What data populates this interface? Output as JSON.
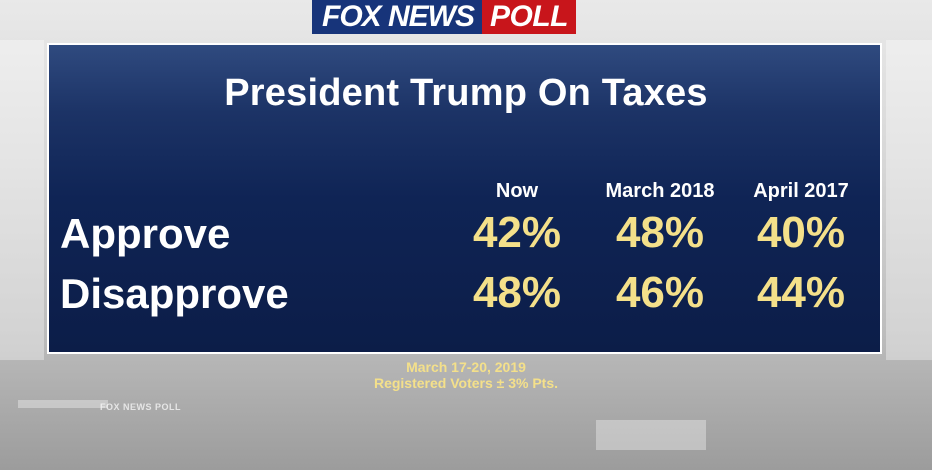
{
  "branding": {
    "logo_left": "FOX NEWS",
    "logo_right": "POLL",
    "watermark": "FOX NEWS POLL",
    "colors": {
      "navy": "#17347a",
      "red": "#c8151b",
      "panel": "#0f2455",
      "value": "#f4e08a"
    }
  },
  "chart_data": {
    "type": "table",
    "title": "President Trump On Taxes",
    "columns": [
      "Now",
      "March 2018",
      "April 2017"
    ],
    "rows": [
      {
        "label": "Approve",
        "values": [
          "42%",
          "48%",
          "40%"
        ]
      },
      {
        "label": "Disapprove",
        "values": [
          "48%",
          "46%",
          "44%"
        ]
      }
    ]
  },
  "footer": {
    "dates": "March 17-20, 2019",
    "sample": "Registered Voters ± 3% Pts."
  }
}
